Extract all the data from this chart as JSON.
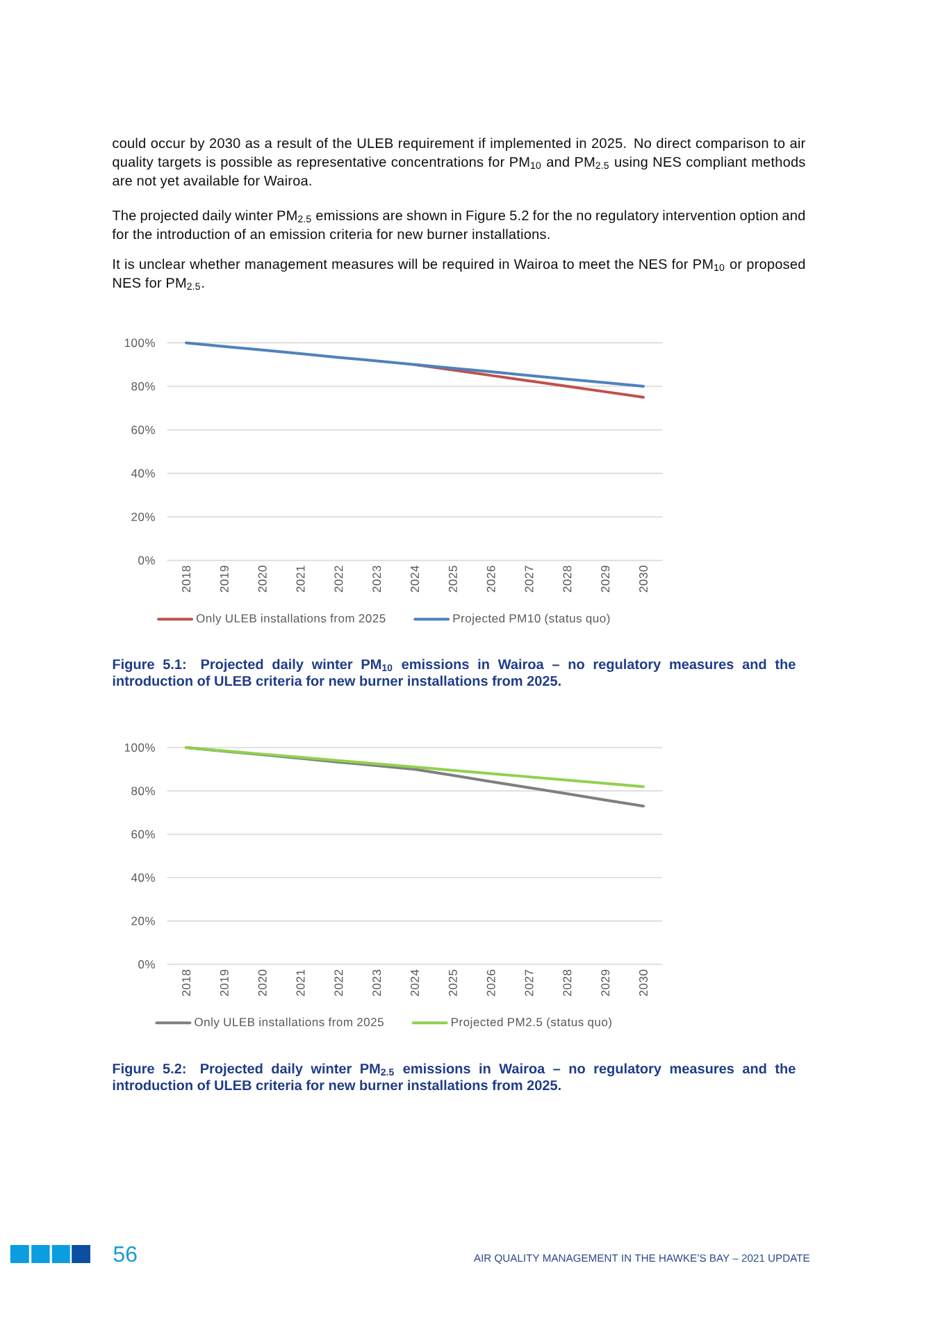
{
  "chart_data": [
    {
      "type": "line",
      "categories": [
        "2018",
        "2019",
        "2020",
        "2021",
        "2022",
        "2023",
        "2024",
        "2025",
        "2026",
        "2027",
        "2028",
        "2029",
        "2030"
      ],
      "series": [
        {
          "name": "Only ULEB installations from 2025",
          "color": "#c0504d",
          "values": [
            null,
            null,
            null,
            null,
            null,
            null,
            90,
            87.5,
            85,
            82.5,
            80,
            77.5,
            75
          ]
        },
        {
          "name": "Projected PM10 (status quo)",
          "color": "#4f81bd",
          "values": [
            100,
            98.3,
            96.7,
            95,
            93.3,
            91.7,
            90,
            88.3,
            86.7,
            85,
            83.3,
            81.7,
            80
          ]
        }
      ],
      "ylim": [
        0,
        100
      ],
      "yticks": [
        {
          "value": 0,
          "label": "0%"
        },
        {
          "value": 20,
          "label": "20%"
        },
        {
          "value": 40,
          "label": "40%"
        },
        {
          "value": 60,
          "label": "60%"
        },
        {
          "value": 80,
          "label": "80%"
        },
        {
          "value": 100,
          "label": "100%"
        }
      ],
      "grid": "y",
      "legend": "bottom",
      "annotations": [
        "could occur by 2030 as a result of the ULEB requirement if implemented in 2025. No direct comparison to air quality targets is possible as representative concentrations for PM$_{10}$ and PM$_{2.5}$ using NES compliant methods are not yet available for Wairoa.",
        "The projected daily winter PM$_{2.5}$ emissions are shown in Figure 5.2 for the no regulatory intervention option and for the introduction of an emission criteria for new burner installations.",
        "It is unclear whether management measures will be required in Wairoa to meet the NES for PM$_{10}$ or proposed NES for PM$_{2.5}$.",
        "Figure 5.1: Projected daily winter PM$_{10}$ emissions in Wairoa – no regulatory measures and the introduction of ULEB criteria for new burner installations from 2025."
      ]
    },
    {
      "type": "line",
      "categories": [
        "2018",
        "2019",
        "2020",
        "2021",
        "2022",
        "2023",
        "2024",
        "2025",
        "2026",
        "2027",
        "2028",
        "2029",
        "2030"
      ],
      "series": [
        {
          "name": "Only ULEB installations from 2025",
          "color": "#7f7f7f",
          "values": [
            100,
            98.3,
            96.7,
            95,
            93.3,
            91.7,
            90,
            87.2,
            84.3,
            81.5,
            78.7,
            75.8,
            73
          ]
        },
        {
          "name": "Projected PM2.5 (status quo)",
          "color": "#92d050",
          "values": [
            100,
            98.5,
            97,
            95.5,
            94,
            92.5,
            91,
            89.5,
            88,
            86.5,
            85,
            83.5,
            82
          ]
        }
      ],
      "ylim": [
        0,
        100
      ],
      "yticks": [
        {
          "value": 0,
          "label": "0%"
        },
        {
          "value": 20,
          "label": "20%"
        },
        {
          "value": 40,
          "label": "40%"
        },
        {
          "value": 60,
          "label": "60%"
        },
        {
          "value": 80,
          "label": "80%"
        },
        {
          "value": 100,
          "label": "100%"
        }
      ],
      "grid": "y",
      "legend": "bottom",
      "annotations": [
        "Figure 5.2: Projected daily winter PM$_{2.5}$ emissions in Wairoa – no regulatory measures and the introduction of ULEB criteria for new burner installations from 2025.",
        "56",
        "AIR QUALITY MANAGEMENT IN THE HAWKE’S BAY – 2021 UPDATE"
      ]
    }
  ]
}
